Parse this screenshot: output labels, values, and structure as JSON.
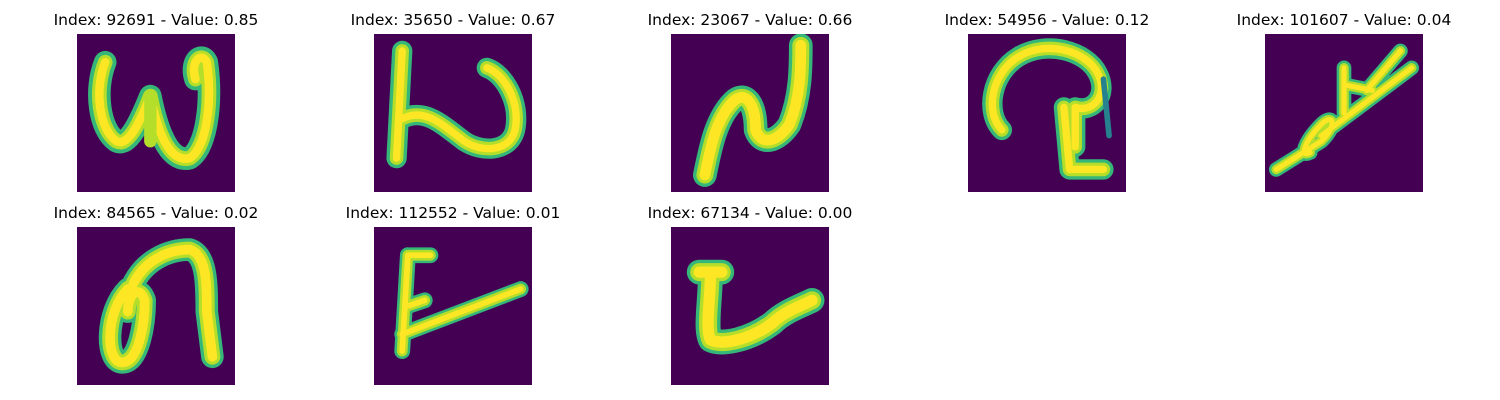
{
  "colors": {
    "background": "#440154",
    "stroke_core": "#fde725",
    "stroke_mid": "#b5de2b",
    "stroke_edge": "#35b779",
    "stroke_faint": "#26828e"
  },
  "panels": [
    {
      "index": "92691",
      "value": "0.85",
      "title": "Index: 92691 - Value: 0.85",
      "glyph": "w-shape"
    },
    {
      "index": "35650",
      "value": "0.67",
      "title": "Index: 35650 - Value: 0.67",
      "glyph": "n-shape"
    },
    {
      "index": "23067",
      "value": "0.66",
      "title": "Index: 23067 - Value: 0.66",
      "glyph": "n-slanted"
    },
    {
      "index": "54956",
      "value": "0.12",
      "title": "Index: 54956 - Value: 0.12",
      "glyph": "loop-hook"
    },
    {
      "index": "101607",
      "value": "0.04",
      "title": "Index: 101607 - Value: 0.04",
      "glyph": "diagonal-branch"
    },
    {
      "index": "84565",
      "value": "0.02",
      "title": "Index: 84565 - Value: 0.02",
      "glyph": "loop-arch"
    },
    {
      "index": "112552",
      "value": "0.01",
      "title": "Index: 112552 - Value: 0.01",
      "glyph": "f-slant"
    },
    {
      "index": "67134",
      "value": "0.00",
      "title": "Index: 67134 - Value: 0.00",
      "glyph": "u-hook"
    }
  ]
}
